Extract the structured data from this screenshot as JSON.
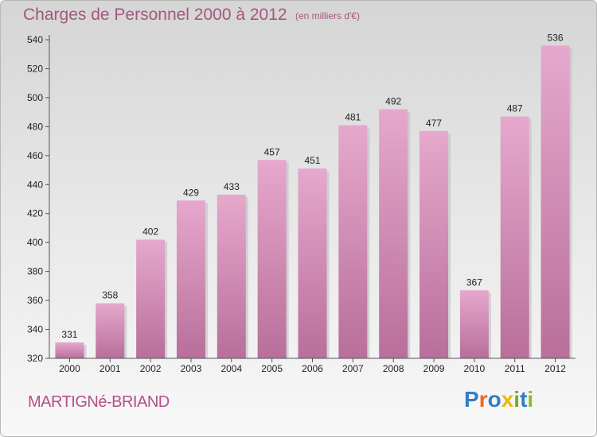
{
  "header": {
    "title": "Charges de Personnel 2000 à 2012",
    "subtitle": "(en milliers d'€)"
  },
  "footer": {
    "commune": "MARTIGNé-BRIAND",
    "brand": "Proxiti"
  },
  "colors": {
    "bar_top": "#e6a8cc",
    "bar_bottom": "#b86f9b",
    "bar_shadow": "#bfbfbf",
    "text": "#222222",
    "title": "#a4577f",
    "logo_letters": [
      "#2f7fc4",
      "#ec6b1d",
      "#2f7fc4",
      "#e8b80f",
      "#6fae2d",
      "#2f7fc4",
      "#8bbb2a"
    ]
  },
  "chart_data": {
    "type": "bar",
    "title": "Charges de Personnel 2000 à 2012",
    "subtitle": "(en milliers d'€)",
    "categories": [
      "2000",
      "2001",
      "2002",
      "2003",
      "2004",
      "2005",
      "2006",
      "2007",
      "2008",
      "2009",
      "2010",
      "2011",
      "2012"
    ],
    "values": [
      331,
      358,
      402,
      429,
      433,
      457,
      451,
      481,
      492,
      477,
      367,
      487,
      536
    ],
    "ylim": [
      320,
      540
    ],
    "yticks": [
      320,
      340,
      360,
      380,
      400,
      420,
      440,
      460,
      480,
      500,
      520,
      540
    ],
    "grid": false,
    "data_labels": true
  }
}
